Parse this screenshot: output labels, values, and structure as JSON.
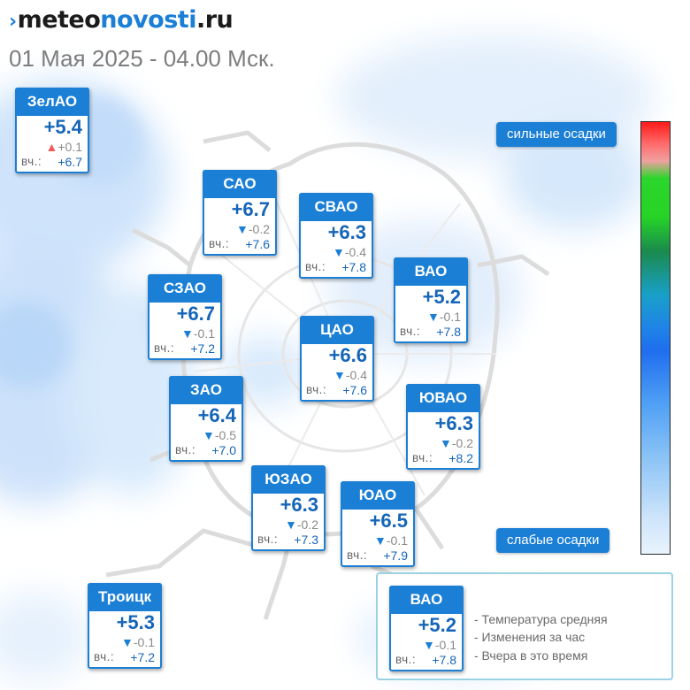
{
  "header": {
    "logo_mark": "›",
    "logo_part1": "meteo",
    "logo_part2": "novosti",
    "logo_part3": ".ru",
    "datetime": "01 Мая 2025 - 04.00 Мск."
  },
  "colors": {
    "accent": "#1b7fd6",
    "temp_text": "#1565b8",
    "trend_down": "#1b7fd6",
    "trend_up": "#ef5b5b"
  },
  "districts": [
    {
      "id": "zelao",
      "name": "ЗелАО",
      "temp": "+5.4",
      "trend": "up",
      "change": "+0.1",
      "yesterday_label": "вч.:",
      "yesterday": "+6.7"
    },
    {
      "id": "sao",
      "name": "САО",
      "temp": "+6.7",
      "trend": "down",
      "change": "-0.2",
      "yesterday_label": "вч.:",
      "yesterday": "+7.6"
    },
    {
      "id": "svao",
      "name": "СВАО",
      "temp": "+6.3",
      "trend": "down",
      "change": "-0.4",
      "yesterday_label": "вч.:",
      "yesterday": "+7.8"
    },
    {
      "id": "vao",
      "name": "ВАО",
      "temp": "+5.2",
      "trend": "down",
      "change": "-0.1",
      "yesterday_label": "вч.:",
      "yesterday": "+7.8"
    },
    {
      "id": "szao",
      "name": "СЗАО",
      "temp": "+6.7",
      "trend": "down",
      "change": "-0.1",
      "yesterday_label": "вч.:",
      "yesterday": "+7.2"
    },
    {
      "id": "cao",
      "name": "ЦАО",
      "temp": "+6.6",
      "trend": "down",
      "change": "-0.4",
      "yesterday_label": "вч.:",
      "yesterday": "+7.6"
    },
    {
      "id": "zao",
      "name": "ЗАО",
      "temp": "+6.4",
      "trend": "down",
      "change": "-0.5",
      "yesterday_label": "вч.:",
      "yesterday": "+7.0"
    },
    {
      "id": "yuvao",
      "name": "ЮВАО",
      "temp": "+6.3",
      "trend": "down",
      "change": "-0.2",
      "yesterday_label": "вч.:",
      "yesterday": "+8.2"
    },
    {
      "id": "yuzao",
      "name": "ЮЗАО",
      "temp": "+6.3",
      "trend": "down",
      "change": "-0.2",
      "yesterday_label": "вч.:",
      "yesterday": "+7.3"
    },
    {
      "id": "yuao",
      "name": "ЮАО",
      "temp": "+6.5",
      "trend": "down",
      "change": "-0.1",
      "yesterday_label": "вч.:",
      "yesterday": "+7.9"
    },
    {
      "id": "troick",
      "name": "Троицк",
      "temp": "+5.3",
      "trend": "down",
      "change": "-0.1",
      "yesterday_label": "вч.:",
      "yesterday": "+7.2"
    }
  ],
  "scale": {
    "top_label": "сильные осадки",
    "bottom_label": "слабые осадки"
  },
  "legend": {
    "example": {
      "name": "ВАО",
      "temp": "+5.2",
      "trend": "down",
      "change": "-0.1",
      "yesterday_label": "вч.:",
      "yesterday": "+7.8"
    },
    "desc_temp": "- Температура средняя",
    "desc_change": "- Изменения за час",
    "desc_yesterday": "- Вчера в это время"
  }
}
